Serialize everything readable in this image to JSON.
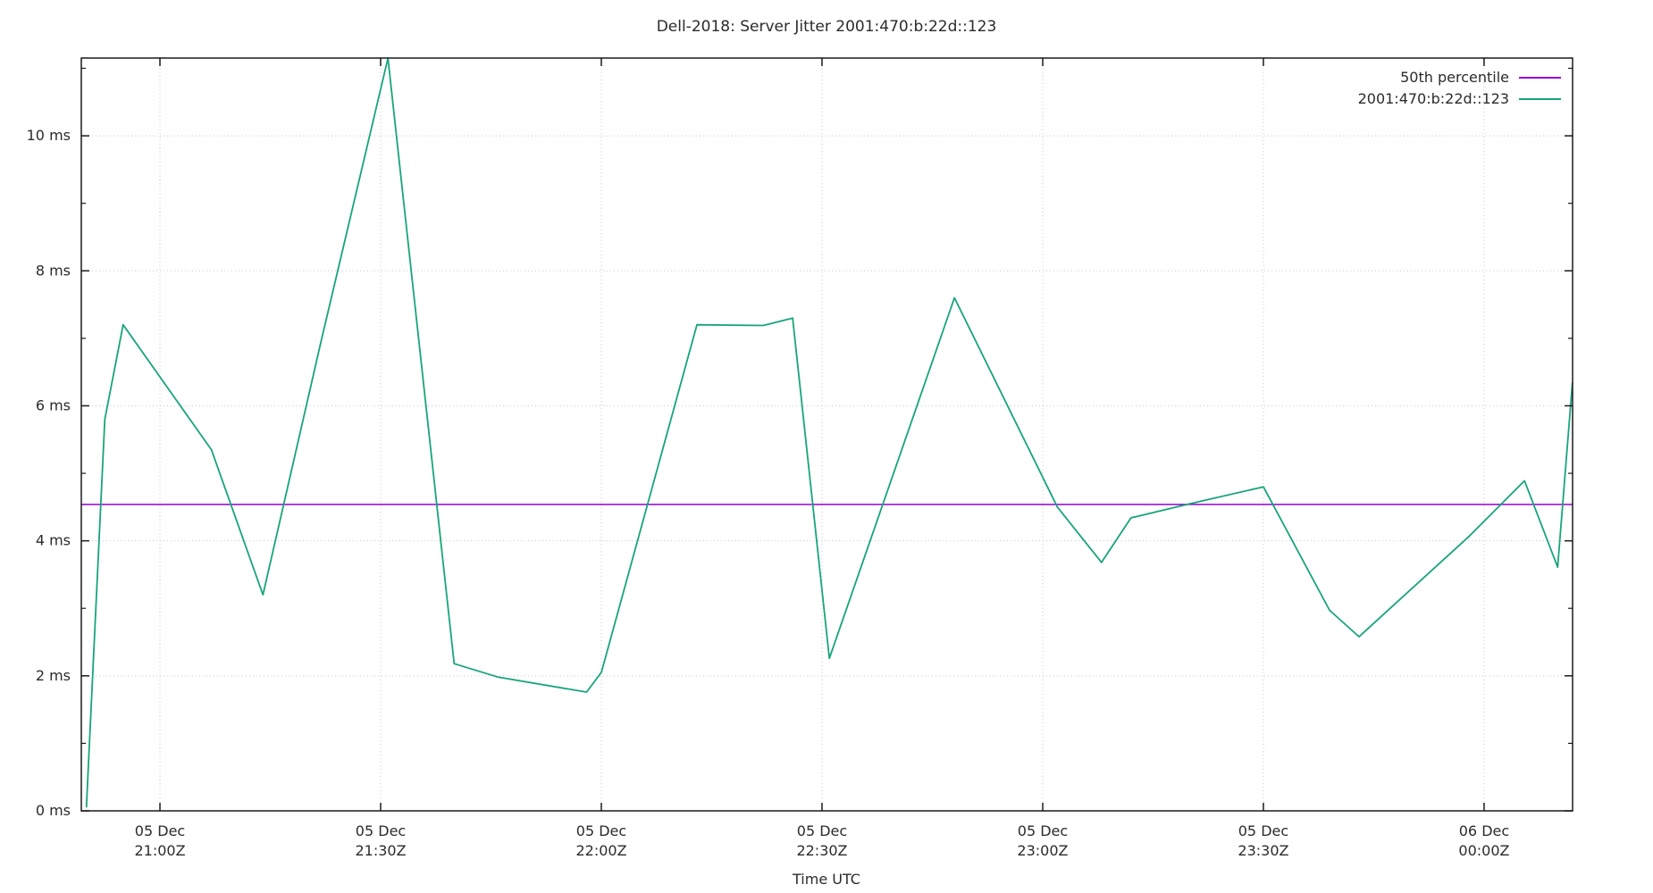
{
  "title": "Dell-2018: Server Jitter 2001:470:b:22d::123",
  "xlabel": "Time UTC",
  "colors": {
    "background": "#ffffff",
    "border": "#1a1a1a",
    "grid": "#c9c9c9",
    "text": "#2b2b2b",
    "percentile_line": "#9400d3",
    "jitter_line": "#18a47c"
  },
  "legend": [
    {
      "label": "50th percentile",
      "color": "#9400d3"
    },
    {
      "label": "2001:470:b:22d::123",
      "color": "#18a47c"
    }
  ],
  "chart_data": {
    "type": "line",
    "title": "Dell-2018: Server Jitter 2001:470:b:22d::123",
    "xlabel": "Time UTC",
    "ylabel": "",
    "x_unit": "minutes after 05 Dec 21:00Z",
    "xlim": [
      -10.69,
      192.03
    ],
    "ylim": [
      0,
      11.152
    ],
    "grid": true,
    "legend_position": "top-right",
    "x_ticks": [
      {
        "min": 0,
        "line1": "05 Dec",
        "line2": "21:00Z"
      },
      {
        "min": 30,
        "line1": "05 Dec",
        "line2": "21:30Z"
      },
      {
        "min": 60,
        "line1": "05 Dec",
        "line2": "22:00Z"
      },
      {
        "min": 90,
        "line1": "05 Dec",
        "line2": "22:30Z"
      },
      {
        "min": 120,
        "line1": "05 Dec",
        "line2": "23:00Z"
      },
      {
        "min": 150,
        "line1": "05 Dec",
        "line2": "23:30Z"
      },
      {
        "min": 180,
        "line1": "06 Dec",
        "line2": "00:00Z"
      }
    ],
    "y_ticks": [
      {
        "ms": 0,
        "label": "0 ms"
      },
      {
        "ms": 2,
        "label": "2 ms"
      },
      {
        "ms": 4,
        "label": "4 ms"
      },
      {
        "ms": 6,
        "label": "6 ms"
      },
      {
        "ms": 8,
        "label": "8 ms"
      },
      {
        "ms": 10,
        "label": "10 ms"
      }
    ],
    "y_minor_ticks": [
      1,
      3,
      5,
      7,
      9,
      11
    ],
    "series": [
      {
        "name": "50th percentile",
        "color": "#9400d3",
        "type": "hline",
        "value_ms": 4.54
      },
      {
        "name": "2001:470:b:22d::123",
        "color": "#18a47c",
        "type": "line",
        "points": [
          [
            -10,
            0.05,
            "20:50"
          ],
          [
            -7.5,
            5.8,
            "20:52"
          ],
          [
            -5,
            7.2,
            "20:55"
          ],
          [
            7,
            5.35,
            "21:07"
          ],
          [
            14,
            3.2,
            "21:14"
          ],
          [
            22,
            7.0,
            "21:22"
          ],
          [
            31,
            11.15,
            "21:31"
          ],
          [
            40,
            2.18,
            "21:40"
          ],
          [
            46,
            1.98,
            "21:46"
          ],
          [
            58,
            1.76,
            "21:58"
          ],
          [
            60,
            2.05,
            "22:00"
          ],
          [
            73,
            7.2,
            "22:13"
          ],
          [
            82,
            7.19,
            "22:22"
          ],
          [
            86,
            7.3,
            "22:26"
          ],
          [
            91,
            2.26,
            "22:31"
          ],
          [
            108,
            7.6,
            "22:48"
          ],
          [
            122,
            4.5,
            "23:02"
          ],
          [
            128,
            3.68,
            "23:08"
          ],
          [
            132,
            4.34,
            "23:12"
          ],
          [
            140,
            4.55,
            "23:20"
          ],
          [
            150,
            4.8,
            "23:30"
          ],
          [
            159,
            2.97,
            "23:39"
          ],
          [
            163,
            2.58,
            "23:43"
          ],
          [
            178,
            4.07,
            "23:58"
          ],
          [
            185.5,
            4.89,
            "00:05"
          ],
          [
            190,
            3.61,
            "00:10"
          ],
          [
            192,
            6.34,
            "00:12"
          ]
        ]
      }
    ]
  }
}
